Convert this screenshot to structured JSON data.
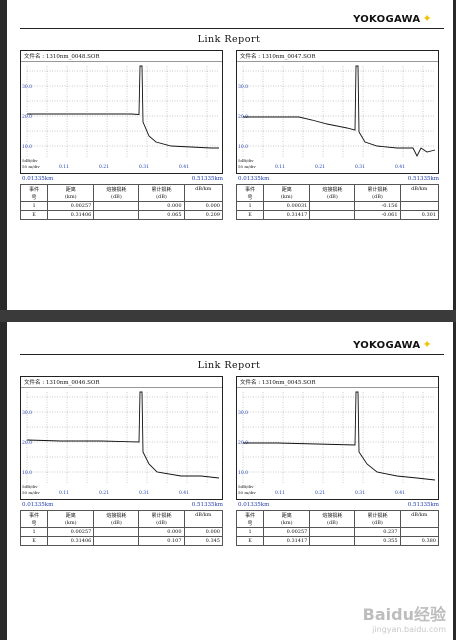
{
  "logo": "YOKOGAWA",
  "report_title": "Link Report",
  "axis": {
    "y_ticks": [
      "30.0",
      "20.0",
      "10.0"
    ],
    "x_ticks": [
      "0.11",
      "0.21",
      "0.31",
      "0.41"
    ],
    "scale_db": "5dB/div",
    "scale_m": "50 m/div"
  },
  "table_headers": {
    "event_1": "事件",
    "event_2": "号",
    "distance_1": "距离",
    "distance_2": "(km)",
    "splice_1": "熔接损耗",
    "splice_2": "(dB)",
    "cumulative_1": "累计损耗",
    "cumulative_2": "(dB)",
    "dbkm": "dB/km"
  },
  "pages": [
    {
      "panels": [
        {
          "file_label": "文件名 : 1310nm_0048.SOR",
          "range_start": "0.01335km",
          "range_end": "0.51335km",
          "rows": [
            {
              "event": "1",
              "distance": "0.00257",
              "splice": "",
              "cumulative": "0.000",
              "dbkm": "0.000"
            },
            {
              "event": "E",
              "distance": "0.31406",
              "splice": "",
              "cumulative": "0.065",
              "dbkm": "0.209"
            }
          ]
        },
        {
          "file_label": "文件名 : 1310nm_0047.SOR",
          "range_start": "0.01335km",
          "range_end": "0.51335km",
          "rows": [
            {
              "event": "1",
              "distance": "0.00031",
              "splice": "",
              "cumulative": "-0.156",
              "dbkm": ""
            },
            {
              "event": "E",
              "distance": "0.31417",
              "splice": "",
              "cumulative": "-0.061",
              "dbkm": "0.301"
            }
          ]
        }
      ]
    },
    {
      "panels": [
        {
          "file_label": "文件名 : 1310nm_0046.SOR",
          "range_start": "0.01335km",
          "range_end": "0.51335km",
          "rows": [
            {
              "event": "1",
              "distance": "0.00257",
              "splice": "",
              "cumulative": "0.000",
              "dbkm": "0.000"
            },
            {
              "event": "E",
              "distance": "0.31406",
              "splice": "",
              "cumulative": "0.107",
              "dbkm": "0.345"
            }
          ]
        },
        {
          "file_label": "文件名 : 1310nm_0045.SOR",
          "range_start": "0.01335km",
          "range_end": "0.51335km",
          "rows": [
            {
              "event": "1",
              "distance": "0.00257",
              "splice": "",
              "cumulative": "0.237",
              "dbkm": ""
            },
            {
              "event": "E",
              "distance": "0.31417",
              "splice": "",
              "cumulative": "0.355",
              "dbkm": "0.380"
            }
          ]
        }
      ]
    }
  ],
  "watermark": "Baidu经验",
  "watermark_sub": "jingyan.baidu.com"
}
